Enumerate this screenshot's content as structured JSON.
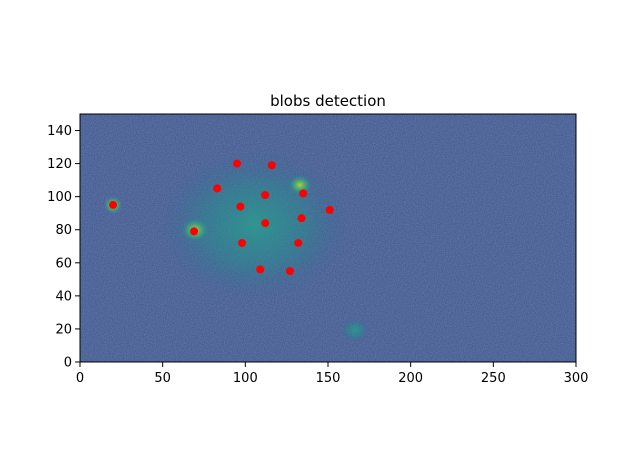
{
  "chart_data": {
    "type": "scatter",
    "title": "blobs detection",
    "xlabel": "",
    "ylabel": "",
    "xlim": [
      0,
      300
    ],
    "ylim": [
      0,
      150
    ],
    "xticks": [
      0,
      50,
      100,
      150,
      200,
      250,
      300
    ],
    "yticks": [
      0,
      20,
      40,
      60,
      80,
      100,
      120,
      140
    ],
    "grid": false,
    "background": "heatmap-viridis",
    "marker_color": "#ff0000",
    "points": [
      {
        "x": 20,
        "y": 95
      },
      {
        "x": 69,
        "y": 79
      },
      {
        "x": 83,
        "y": 105
      },
      {
        "x": 95,
        "y": 120
      },
      {
        "x": 97,
        "y": 94
      },
      {
        "x": 98,
        "y": 72
      },
      {
        "x": 109,
        "y": 56
      },
      {
        "x": 112,
        "y": 101
      },
      {
        "x": 112,
        "y": 84
      },
      {
        "x": 116,
        "y": 119
      },
      {
        "x": 127,
        "y": 55
      },
      {
        "x": 132,
        "y": 72
      },
      {
        "x": 134,
        "y": 87
      },
      {
        "x": 135,
        "y": 102
      },
      {
        "x": 151,
        "y": 92
      }
    ]
  }
}
